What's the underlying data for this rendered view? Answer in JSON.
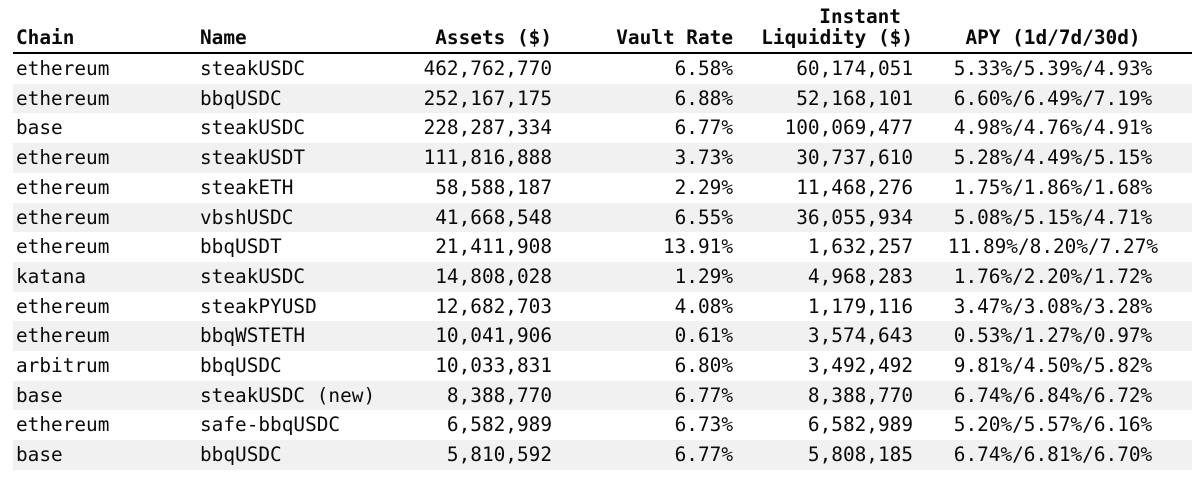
{
  "colors": {
    "background": "#ffffff",
    "stripe": "#f1f1f1",
    "text": "#0a0a0a",
    "header_rule": "#000000"
  },
  "table": {
    "headers": [
      {
        "label": "Chain"
      },
      {
        "label": "Name"
      },
      {
        "label": "Assets ($)"
      },
      {
        "label": "Vault Rate"
      },
      {
        "label_line1": "Instant",
        "label": "Liquidity ($)"
      },
      {
        "label": "APY (1d/7d/30d)"
      }
    ],
    "rows": [
      [
        "ethereum",
        "steakUSDC",
        "462,762,770",
        "6.58%",
        "60,174,051",
        "5.33%/5.39%/4.93%"
      ],
      [
        "ethereum",
        "bbqUSDC",
        "252,167,175",
        "6.88%",
        "52,168,101",
        "6.60%/6.49%/7.19%"
      ],
      [
        "base",
        "steakUSDC",
        "228,287,334",
        "6.77%",
        "100,069,477",
        "4.98%/4.76%/4.91%"
      ],
      [
        "ethereum",
        "steakUSDT",
        "111,816,888",
        "3.73%",
        "30,737,610",
        "5.28%/4.49%/5.15%"
      ],
      [
        "ethereum",
        "steakETH",
        "58,588,187",
        "2.29%",
        "11,468,276",
        "1.75%/1.86%/1.68%"
      ],
      [
        "ethereum",
        "vbshUSDC",
        "41,668,548",
        "6.55%",
        "36,055,934",
        "5.08%/5.15%/4.71%"
      ],
      [
        "ethereum",
        "bbqUSDT",
        "21,411,908",
        "13.91%",
        "1,632,257",
        "11.89%/8.20%/7.27%"
      ],
      [
        "katana",
        "steakUSDC",
        "14,808,028",
        "1.29%",
        "4,968,283",
        "1.76%/2.20%/1.72%"
      ],
      [
        "ethereum",
        "steakPYUSD",
        "12,682,703",
        "4.08%",
        "1,179,116",
        "3.47%/3.08%/3.28%"
      ],
      [
        "ethereum",
        "bbqWSTETH",
        "10,041,906",
        "0.61%",
        "3,574,643",
        "0.53%/1.27%/0.97%"
      ],
      [
        "arbitrum",
        "bbqUSDC",
        "10,033,831",
        "6.80%",
        "3,492,492",
        "9.81%/4.50%/5.82%"
      ],
      [
        "base",
        "steakUSDC (new)",
        "8,388,770",
        "6.77%",
        "8,388,770",
        "6.74%/6.84%/6.72%"
      ],
      [
        "ethereum",
        "safe-bbqUSDC",
        "6,582,989",
        "6.73%",
        "6,582,989",
        "5.20%/5.57%/6.16%"
      ],
      [
        "base",
        "bbqUSDC",
        "5,810,592",
        "6.77%",
        "5,808,185",
        "6.74%/6.81%/6.70%"
      ]
    ]
  }
}
